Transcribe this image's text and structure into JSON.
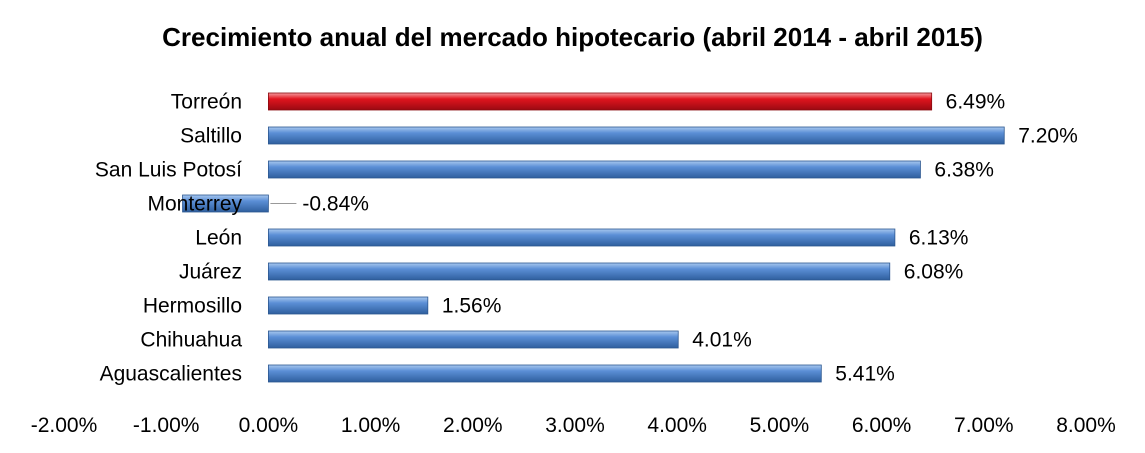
{
  "chart_data": {
    "type": "bar",
    "orientation": "horizontal",
    "title": "Crecimiento anual del mercado hipotecario (abril 2014 - abril 2015)",
    "categories": [
      "Torreón",
      "Saltillo",
      "San Luis Potosí",
      "Monterrey",
      "León",
      "Juárez",
      "Hermosillo",
      "Chihuahua",
      "Aguascalientes"
    ],
    "values": [
      6.49,
      7.2,
      6.38,
      -0.84,
      6.13,
      6.08,
      1.56,
      4.01,
      5.41
    ],
    "data_labels": [
      "6.49%",
      "7.20%",
      "6.38%",
      "-0.84%",
      "6.13%",
      "6.08%",
      "1.56%",
      "4.01%",
      "5.41%"
    ],
    "xlim": [
      -2,
      8
    ],
    "xticks": [
      -2,
      -1,
      0,
      1,
      2,
      3,
      4,
      5,
      6,
      7,
      8
    ],
    "xtick_labels": [
      "-2.00%",
      "-1.00%",
      "0.00%",
      "1.00%",
      "2.00%",
      "3.00%",
      "4.00%",
      "5.00%",
      "6.00%",
      "7.00%",
      "8.00%"
    ],
    "grid": false,
    "legend": "none",
    "colors": {
      "default": "#4f81bd",
      "highlight": "#e0141e"
    },
    "highlight_category": "Torreón"
  }
}
